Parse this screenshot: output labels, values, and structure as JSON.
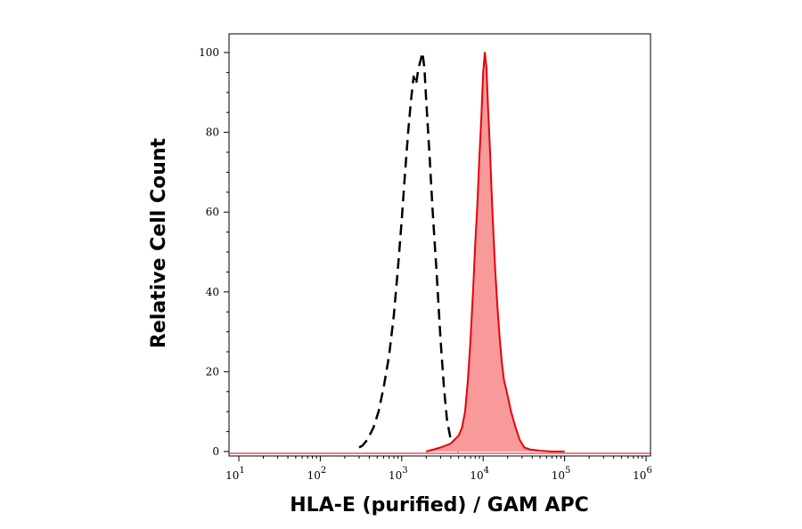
{
  "chart_data": {
    "type": "area",
    "xlabel": "HLA-E (purified) / GAM APC",
    "ylabel": "Relative Cell Count",
    "xscale": "log",
    "xlim": [
      10,
      1000000
    ],
    "ylim": [
      0,
      100
    ],
    "x_ticks": [
      {
        "value": 10,
        "base": "10",
        "exp": "1"
      },
      {
        "value": 100,
        "base": "10",
        "exp": "2"
      },
      {
        "value": 1000,
        "base": "10",
        "exp": "3"
      },
      {
        "value": 10000,
        "base": "10",
        "exp": "4"
      },
      {
        "value": 100000,
        "base": "10",
        "exp": "5"
      },
      {
        "value": 1000000,
        "base": "10",
        "exp": "6"
      }
    ],
    "y_ticks": [
      0,
      20,
      40,
      60,
      80,
      100
    ],
    "grid": false,
    "series": [
      {
        "style": "dashed-line",
        "color": "#000000",
        "x": [
          300,
          330,
          380,
          450,
          520,
          600,
          700,
          800,
          900,
          1000,
          1100,
          1200,
          1300,
          1400,
          1500,
          1600,
          1700,
          1800,
          1900,
          2000,
          2200,
          2400,
          2700,
          3000,
          3300,
          3600,
          4000,
          4500,
          5000
        ],
        "y": [
          1,
          1.5,
          3,
          6,
          10,
          16,
          24,
          34,
          46,
          58,
          70,
          80,
          88,
          94,
          92,
          96,
          98,
          100,
          96,
          88,
          74,
          60,
          44,
          28,
          16,
          8,
          3,
          1,
          0
        ]
      },
      {
        "style": "filled",
        "color": "#e8000b",
        "fill": "#f89a9a",
        "x": [
          2000,
          3000,
          4000,
          5000,
          5500,
          6000,
          6500,
          7000,
          7500,
          8000,
          8500,
          9000,
          9500,
          10000,
          10500,
          11000,
          11500,
          12000,
          13000,
          14000,
          15000,
          16000,
          17000,
          18000,
          20000,
          22000,
          25000,
          28000,
          32000,
          38000,
          50000,
          70000,
          100000
        ],
        "y": [
          0,
          1,
          2,
          4,
          6,
          10,
          18,
          28,
          40,
          52,
          62,
          74,
          84,
          95,
          100,
          96,
          86,
          78,
          60,
          46,
          36,
          28,
          22,
          18,
          14,
          10,
          6,
          3,
          1,
          0.5,
          0.2,
          0,
          0
        ]
      }
    ]
  }
}
